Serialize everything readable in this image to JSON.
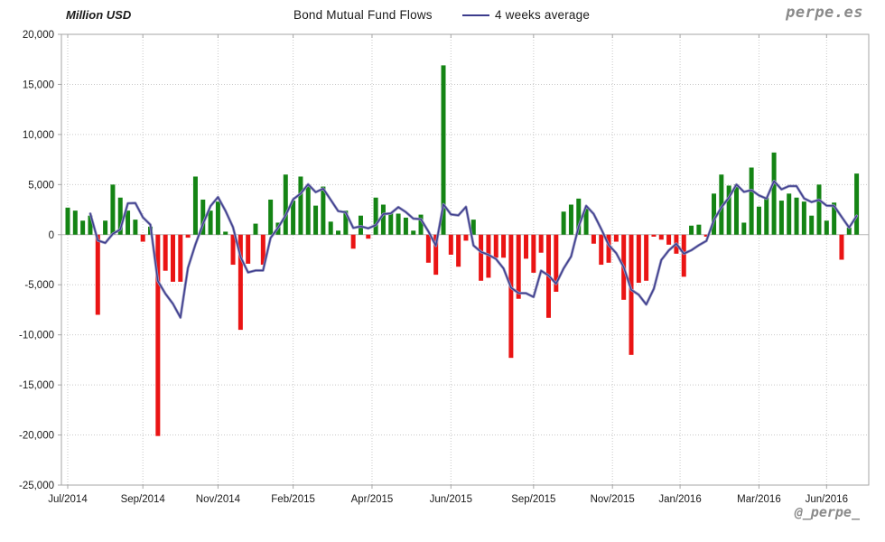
{
  "header": {
    "y_axis_title": "Million USD",
    "title": "Bond Mutual Fund Flows",
    "legend_label": "4 weeks average",
    "brand": "perpe.es"
  },
  "footer": {
    "handle": "@_perpe_"
  },
  "chart_data": {
    "type": "bar",
    "title": "Bond Mutual Fund Flows",
    "ylabel": "Million USD",
    "ylim": [
      -25000,
      20000
    ],
    "grid": "dotted",
    "legend_position": "top",
    "x_unit": "week",
    "series": [
      {
        "name": "Weekly bond mutual fund flows (Million USD)",
        "type": "bar",
        "values": [
          2700,
          2400,
          1400,
          1900,
          -8000,
          1400,
          5000,
          3700,
          2400,
          1500,
          -700,
          800,
          -20100,
          -3600,
          -4700,
          -4700,
          -300,
          5800,
          3500,
          2400,
          3300,
          300,
          -3000,
          -9500,
          -2900,
          1100,
          -3000,
          3500,
          1200,
          6000,
          3400,
          5800,
          4900,
          2900,
          4800,
          1300,
          400,
          2400,
          -1400,
          1900,
          -400,
          3700,
          3000,
          2200,
          2100,
          1700,
          400,
          2000,
          -2800,
          -4000,
          16900,
          -2000,
          -3200,
          -600,
          1500,
          -4600,
          -4300,
          -2300,
          -2300,
          -12300,
          -6400,
          -2400,
          -3800,
          -1800,
          -8300,
          -5700,
          2300,
          3000,
          3600,
          2600,
          -900,
          -3000,
          -2800,
          -700,
          -6500,
          -12000,
          -4800,
          -4600,
          -200,
          -500,
          -1000,
          -1900,
          -4200,
          900,
          1000,
          -200,
          4100,
          6000,
          4900,
          5000,
          1200,
          6700,
          2800,
          3700,
          8200,
          3400,
          4100,
          3700,
          3300,
          1900,
          5000,
          1400,
          3200,
          -2500,
          700,
          6100
        ]
      },
      {
        "name": "4 weeks average",
        "type": "line",
        "derivation": "trailing 4-week mean of weekly flows"
      }
    ],
    "x_ticks": [
      {
        "label": "Jul/2014",
        "week": 0
      },
      {
        "label": "Sep/2014",
        "week": 10
      },
      {
        "label": "Nov/2014",
        "week": 20
      },
      {
        "label": "Feb/2015",
        "week": 30
      },
      {
        "label": "Apr/2015",
        "week": 40.5
      },
      {
        "label": "Jun/2015",
        "week": 51
      },
      {
        "label": "Sep/2015",
        "week": 62
      },
      {
        "label": "Nov/2015",
        "week": 72.5
      },
      {
        "label": "Jan/2016",
        "week": 81.5
      },
      {
        "label": "Mar/2016",
        "week": 92
      },
      {
        "label": "Jun/2016",
        "week": 101
      }
    ],
    "y_ticks": [
      {
        "value": 20000,
        "label": "20,000"
      },
      {
        "value": 15000,
        "label": "15,000"
      },
      {
        "value": 10000,
        "label": "10,000"
      },
      {
        "value": 5000,
        "label": "5,000"
      },
      {
        "value": 0,
        "label": "0"
      },
      {
        "value": -5000,
        "label": "-5,000"
      },
      {
        "value": -10000,
        "label": "-10,000"
      },
      {
        "value": -15000,
        "label": "-15,000"
      },
      {
        "value": -20000,
        "label": "-20,000"
      },
      {
        "value": -25000,
        "label": "-25,000"
      }
    ],
    "colors": {
      "positive": "#148414",
      "negative": "#ea1414",
      "line": "#3c3c8c",
      "line_halo": "#9494c0",
      "grid": "#c9c9c9",
      "zero": "#b5b5b5",
      "border": "#a6a6a6",
      "text": "#1a1a1a",
      "brand": "#8a8a8a"
    }
  }
}
